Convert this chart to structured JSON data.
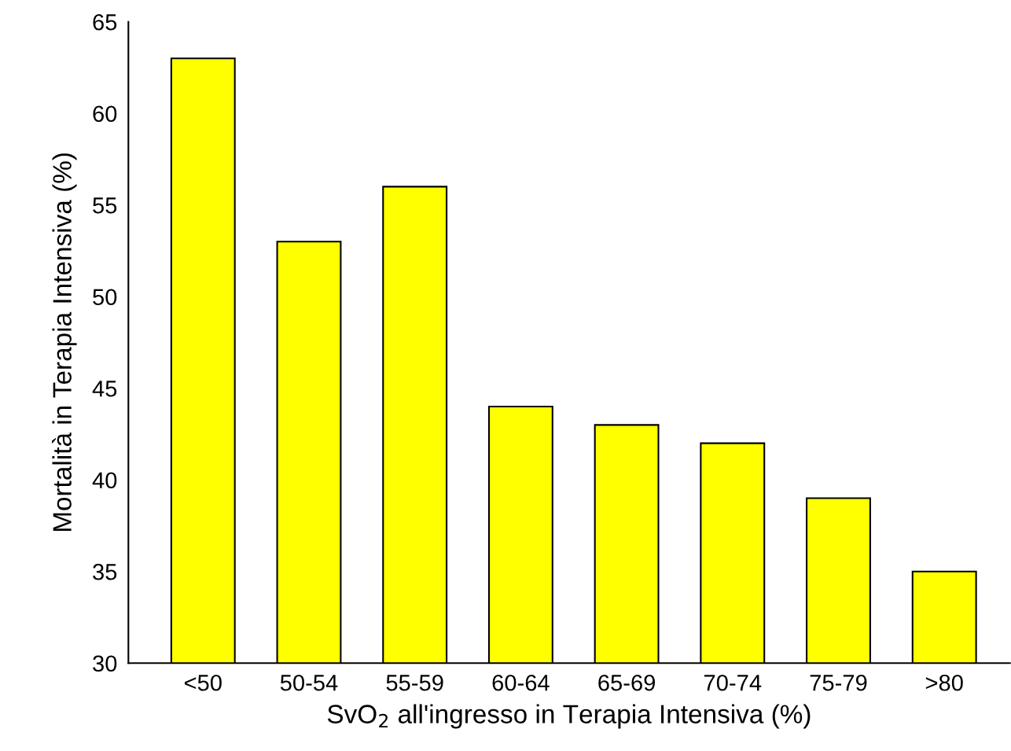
{
  "chart_data": {
    "type": "bar",
    "categories": [
      "<50",
      "50-54",
      "55-59",
      "60-64",
      "65-69",
      "70-74",
      "75-79",
      ">80"
    ],
    "values": [
      63,
      53,
      56,
      44,
      43,
      42,
      39,
      35
    ],
    "color": "#ffff00",
    "xlabel": "SvO$_{2}$ all'ingresso in Terapia Intensiva (%)",
    "ylabel": "Mortalità in Terapia Intensiva (%)",
    "ylim": [
      30,
      65
    ],
    "yticks": [
      30,
      35,
      40,
      45,
      50,
      55,
      60,
      65
    ],
    "grid": false,
    "legend": false
  }
}
